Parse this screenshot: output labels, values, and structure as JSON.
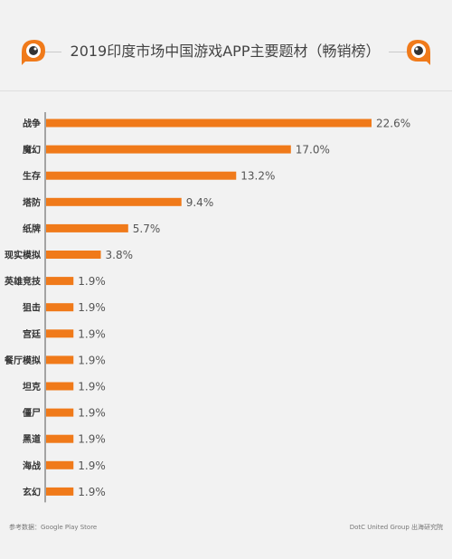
{
  "chart_data": {
    "type": "bar",
    "orientation": "horizontal",
    "title": "2019印度市场中国游戏APP主要题材（畅销榜）",
    "categories": [
      "战争",
      "魔幻",
      "生存",
      "塔防",
      "纸牌",
      "现实模拟",
      "英雄竞技",
      "狙击",
      "宫廷",
      "餐厅模拟",
      "坦克",
      "僵尸",
      "黑道",
      "海战",
      "玄幻"
    ],
    "values": [
      22.6,
      17.0,
      13.2,
      9.4,
      5.7,
      3.8,
      1.9,
      1.9,
      1.9,
      1.9,
      1.9,
      1.9,
      1.9,
      1.9,
      1.9
    ],
    "value_labels": [
      "22.6%",
      "17.0%",
      "13.2%",
      "9.4%",
      "5.7%",
      "3.8%",
      "1.9%",
      "1.9%",
      "1.9%",
      "1.9%",
      "1.9%",
      "1.9%",
      "1.9%",
      "1.9%",
      "1.9%"
    ],
    "xlim": [
      0,
      22.6
    ],
    "grid": false,
    "bar_color": "#f07a1a"
  },
  "footer": {
    "source": "参考数据：Google Play Store",
    "credit": "DotC United Group 出海研究院"
  },
  "colors": {
    "background": "#f2f2f2",
    "accent": "#f07a1a",
    "axis": "#555555"
  },
  "icons": {
    "left": "robot-mascot-icon",
    "right": "robot-mascot-icon"
  }
}
